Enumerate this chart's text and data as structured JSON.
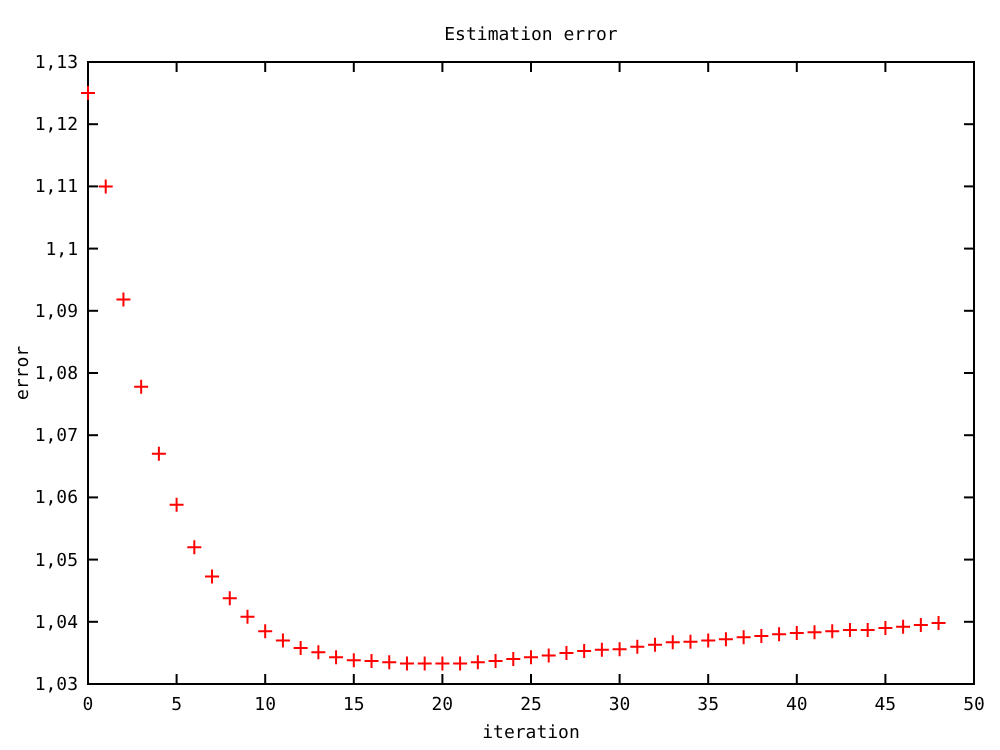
{
  "chart_data": {
    "type": "scatter",
    "title": "Estimation error",
    "xlabel": "iteration",
    "ylabel": "error",
    "x": [
      0,
      1,
      2,
      3,
      4,
      5,
      6,
      7,
      8,
      9,
      10,
      11,
      12,
      13,
      14,
      15,
      16,
      17,
      18,
      19,
      20,
      21,
      22,
      23,
      24,
      25,
      26,
      27,
      28,
      29,
      30,
      31,
      32,
      33,
      34,
      35,
      36,
      37,
      38,
      39,
      40,
      41,
      42,
      43,
      44,
      45,
      46,
      47,
      48
    ],
    "series": [
      {
        "color": "#ff0000",
        "values": [
          1.125,
          1.11,
          1.0918,
          1.0778,
          1.067,
          1.0588,
          1.052,
          1.0473,
          1.0438,
          1.0408,
          1.0385,
          1.037,
          1.0358,
          1.0351,
          1.0343,
          1.0338,
          1.0337,
          1.0335,
          1.0333,
          1.0333,
          1.0333,
          1.0333,
          1.0335,
          1.0337,
          1.034,
          1.0343,
          1.0346,
          1.035,
          1.0353,
          1.0355,
          1.0356,
          1.036,
          1.0363,
          1.0367,
          1.0368,
          1.037,
          1.0372,
          1.0375,
          1.0377,
          1.038,
          1.0382,
          1.0383,
          1.0385,
          1.0387,
          1.0387,
          1.039,
          1.0392,
          1.0395,
          1.0398
        ]
      }
    ],
    "xlim": [
      0,
      50
    ],
    "xticks": [
      0,
      5,
      10,
      15,
      20,
      25,
      30,
      35,
      40,
      45,
      50
    ],
    "ylim": [
      1.03,
      1.13
    ],
    "yticks": [
      {
        "value": 1.03,
        "label": "1,03"
      },
      {
        "value": 1.04,
        "label": "1,04"
      },
      {
        "value": 1.05,
        "label": "1,05"
      },
      {
        "value": 1.06,
        "label": "1,06"
      },
      {
        "value": 1.07,
        "label": "1,07"
      },
      {
        "value": 1.08,
        "label": "1,08"
      },
      {
        "value": 1.09,
        "label": "1,09"
      },
      {
        "value": 1.1,
        "label": "1,1"
      },
      {
        "value": 1.11,
        "label": "1,11"
      },
      {
        "value": 1.12,
        "label": "1,12"
      },
      {
        "value": 1.13,
        "label": "1,13"
      }
    ],
    "marker": "cross",
    "grid": false
  }
}
